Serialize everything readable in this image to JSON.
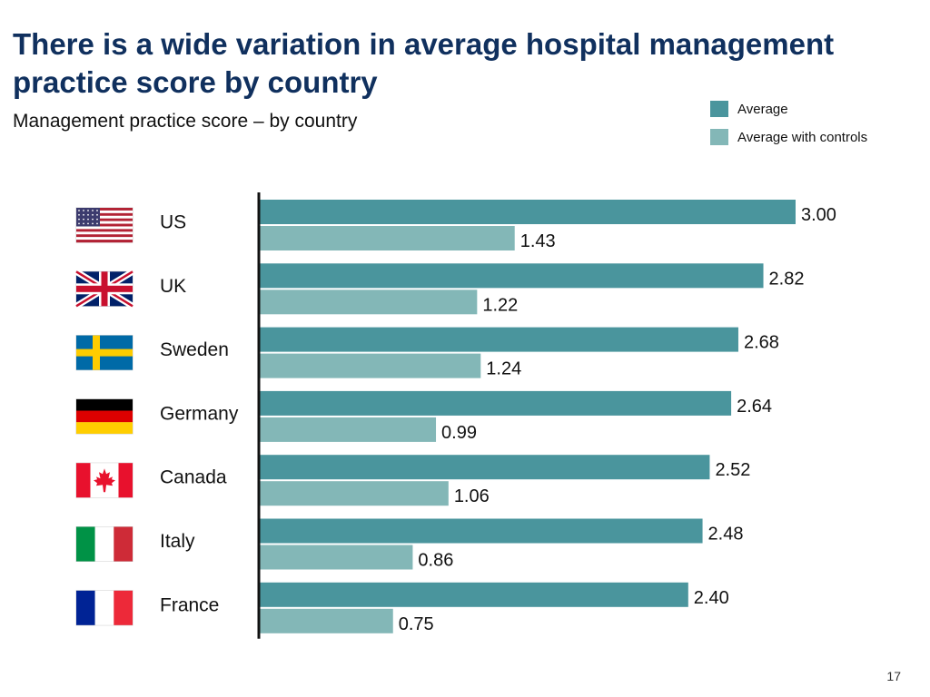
{
  "slide": {
    "title": "There is a wide variation in average hospital management practice score by country",
    "subtitle": "Management practice score – by country",
    "page_number": "17"
  },
  "colors": {
    "title": "#10305e",
    "average": "#4a959d",
    "average_with_controls": "#83b7b7",
    "axis": "#111111"
  },
  "flag_icons": [
    "us-flag-icon",
    "uk-flag-icon",
    "sweden-flag-icon",
    "germany-flag-icon",
    "canada-flag-icon",
    "italy-flag-icon",
    "france-flag-icon"
  ],
  "chart_data": {
    "type": "bar",
    "orientation": "horizontal",
    "title": "",
    "xlabel": "",
    "ylabel": "",
    "categories": [
      "US",
      "UK",
      "Sweden",
      "Germany",
      "Canada",
      "Italy",
      "France"
    ],
    "series": [
      {
        "name": "Average",
        "values": [
          3.0,
          2.82,
          2.68,
          2.64,
          2.52,
          2.48,
          2.4
        ]
      },
      {
        "name": "Average with controls",
        "values": [
          1.43,
          1.22,
          1.24,
          0.99,
          1.06,
          0.86,
          0.75
        ]
      }
    ],
    "data_labels": [
      [
        "3.00",
        "2.82",
        "2.68",
        "2.64",
        "2.52",
        "2.48",
        "2.40"
      ],
      [
        "1.43",
        "1.22",
        "1.24",
        "0.99",
        "1.06",
        "0.86",
        "0.75"
      ]
    ],
    "xlim": [
      0,
      3.0
    ],
    "grid": false,
    "legend_position": "top-right"
  }
}
